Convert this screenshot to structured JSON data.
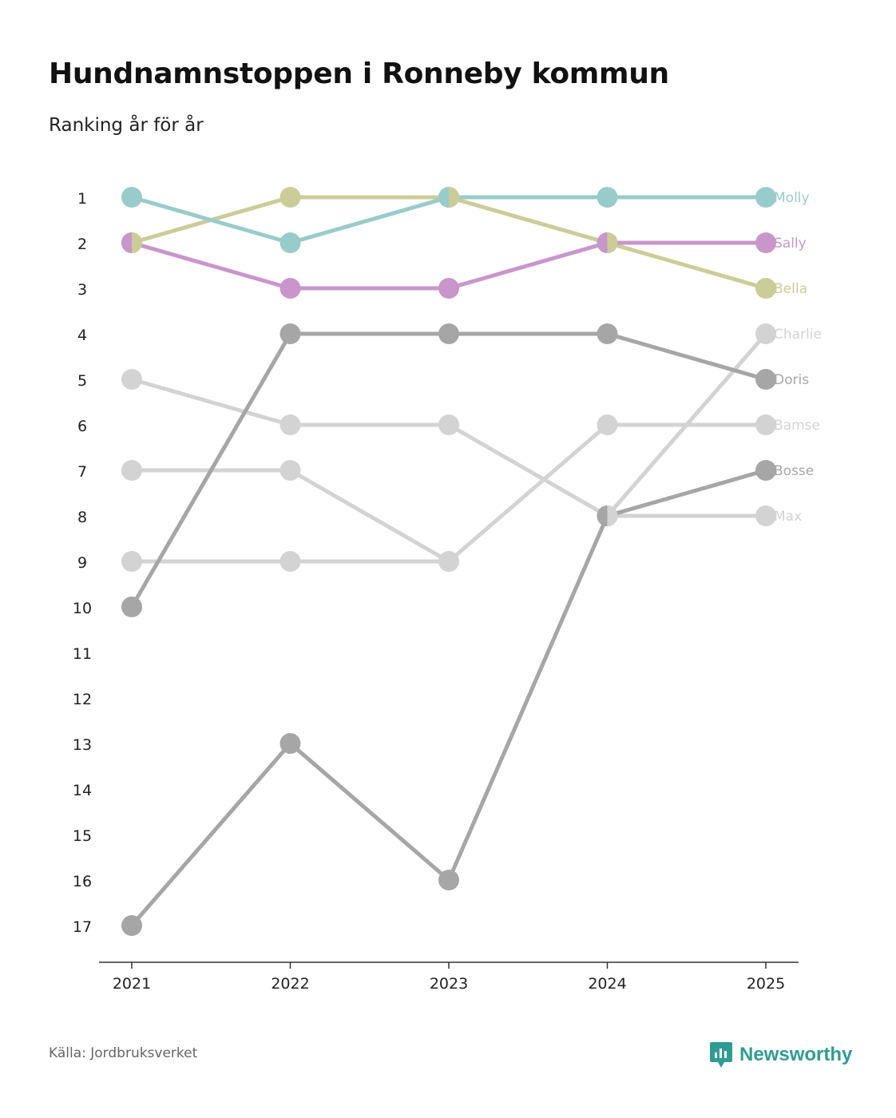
{
  "title": "Hundnamnstoppen i Ronneby kommun",
  "subtitle": "Ranking år för år",
  "source": "Källa: Jordbruksverket",
  "brand": "Newsworthy",
  "colors": {
    "molly": "#98cccb",
    "sally": "#c996cc",
    "bella": "#cccc98",
    "dark": "#a6a6a6",
    "light": "#d3d3d3",
    "axis": "#333333"
  },
  "chart_data": {
    "type": "line",
    "title": "Hundnamnstoppen i Ronneby kommun",
    "subtitle": "Ranking år för år",
    "xlabel": "",
    "ylabel": "",
    "x": [
      "2021",
      "2022",
      "2023",
      "2024",
      "2025"
    ],
    "yticks": [
      "1",
      "2",
      "3",
      "4",
      "5",
      "6",
      "7",
      "8",
      "9",
      "10",
      "11",
      "12",
      "13",
      "14",
      "15",
      "16",
      "17"
    ],
    "ylim": [
      1,
      17
    ],
    "y_inverted": true,
    "series": [
      {
        "name": "Molly",
        "color": "molly",
        "values": [
          1,
          2,
          1,
          1,
          1
        ]
      },
      {
        "name": "Sally",
        "color": "sally",
        "values": [
          2,
          3,
          3,
          2,
          2
        ]
      },
      {
        "name": "Bella",
        "color": "bella",
        "values": [
          2,
          1,
          1,
          2,
          3
        ]
      },
      {
        "name": "Charlie",
        "color": "light",
        "values": [
          null,
          null,
          null,
          8,
          4
        ]
      },
      {
        "name": "Doris",
        "color": "dark",
        "values": [
          10,
          4,
          4,
          4,
          5
        ]
      },
      {
        "name": "Bamse",
        "color": "light",
        "values": [
          9,
          9,
          9,
          6,
          6
        ]
      },
      {
        "name": "Bosse",
        "color": "dark",
        "values": [
          17,
          13,
          16,
          8,
          7
        ]
      },
      {
        "name": "Max",
        "color": "light",
        "values": [
          5,
          6,
          6,
          8,
          8
        ]
      },
      {
        "name": "",
        "color": "light",
        "values": [
          7,
          7,
          9,
          null,
          null
        ]
      }
    ]
  }
}
